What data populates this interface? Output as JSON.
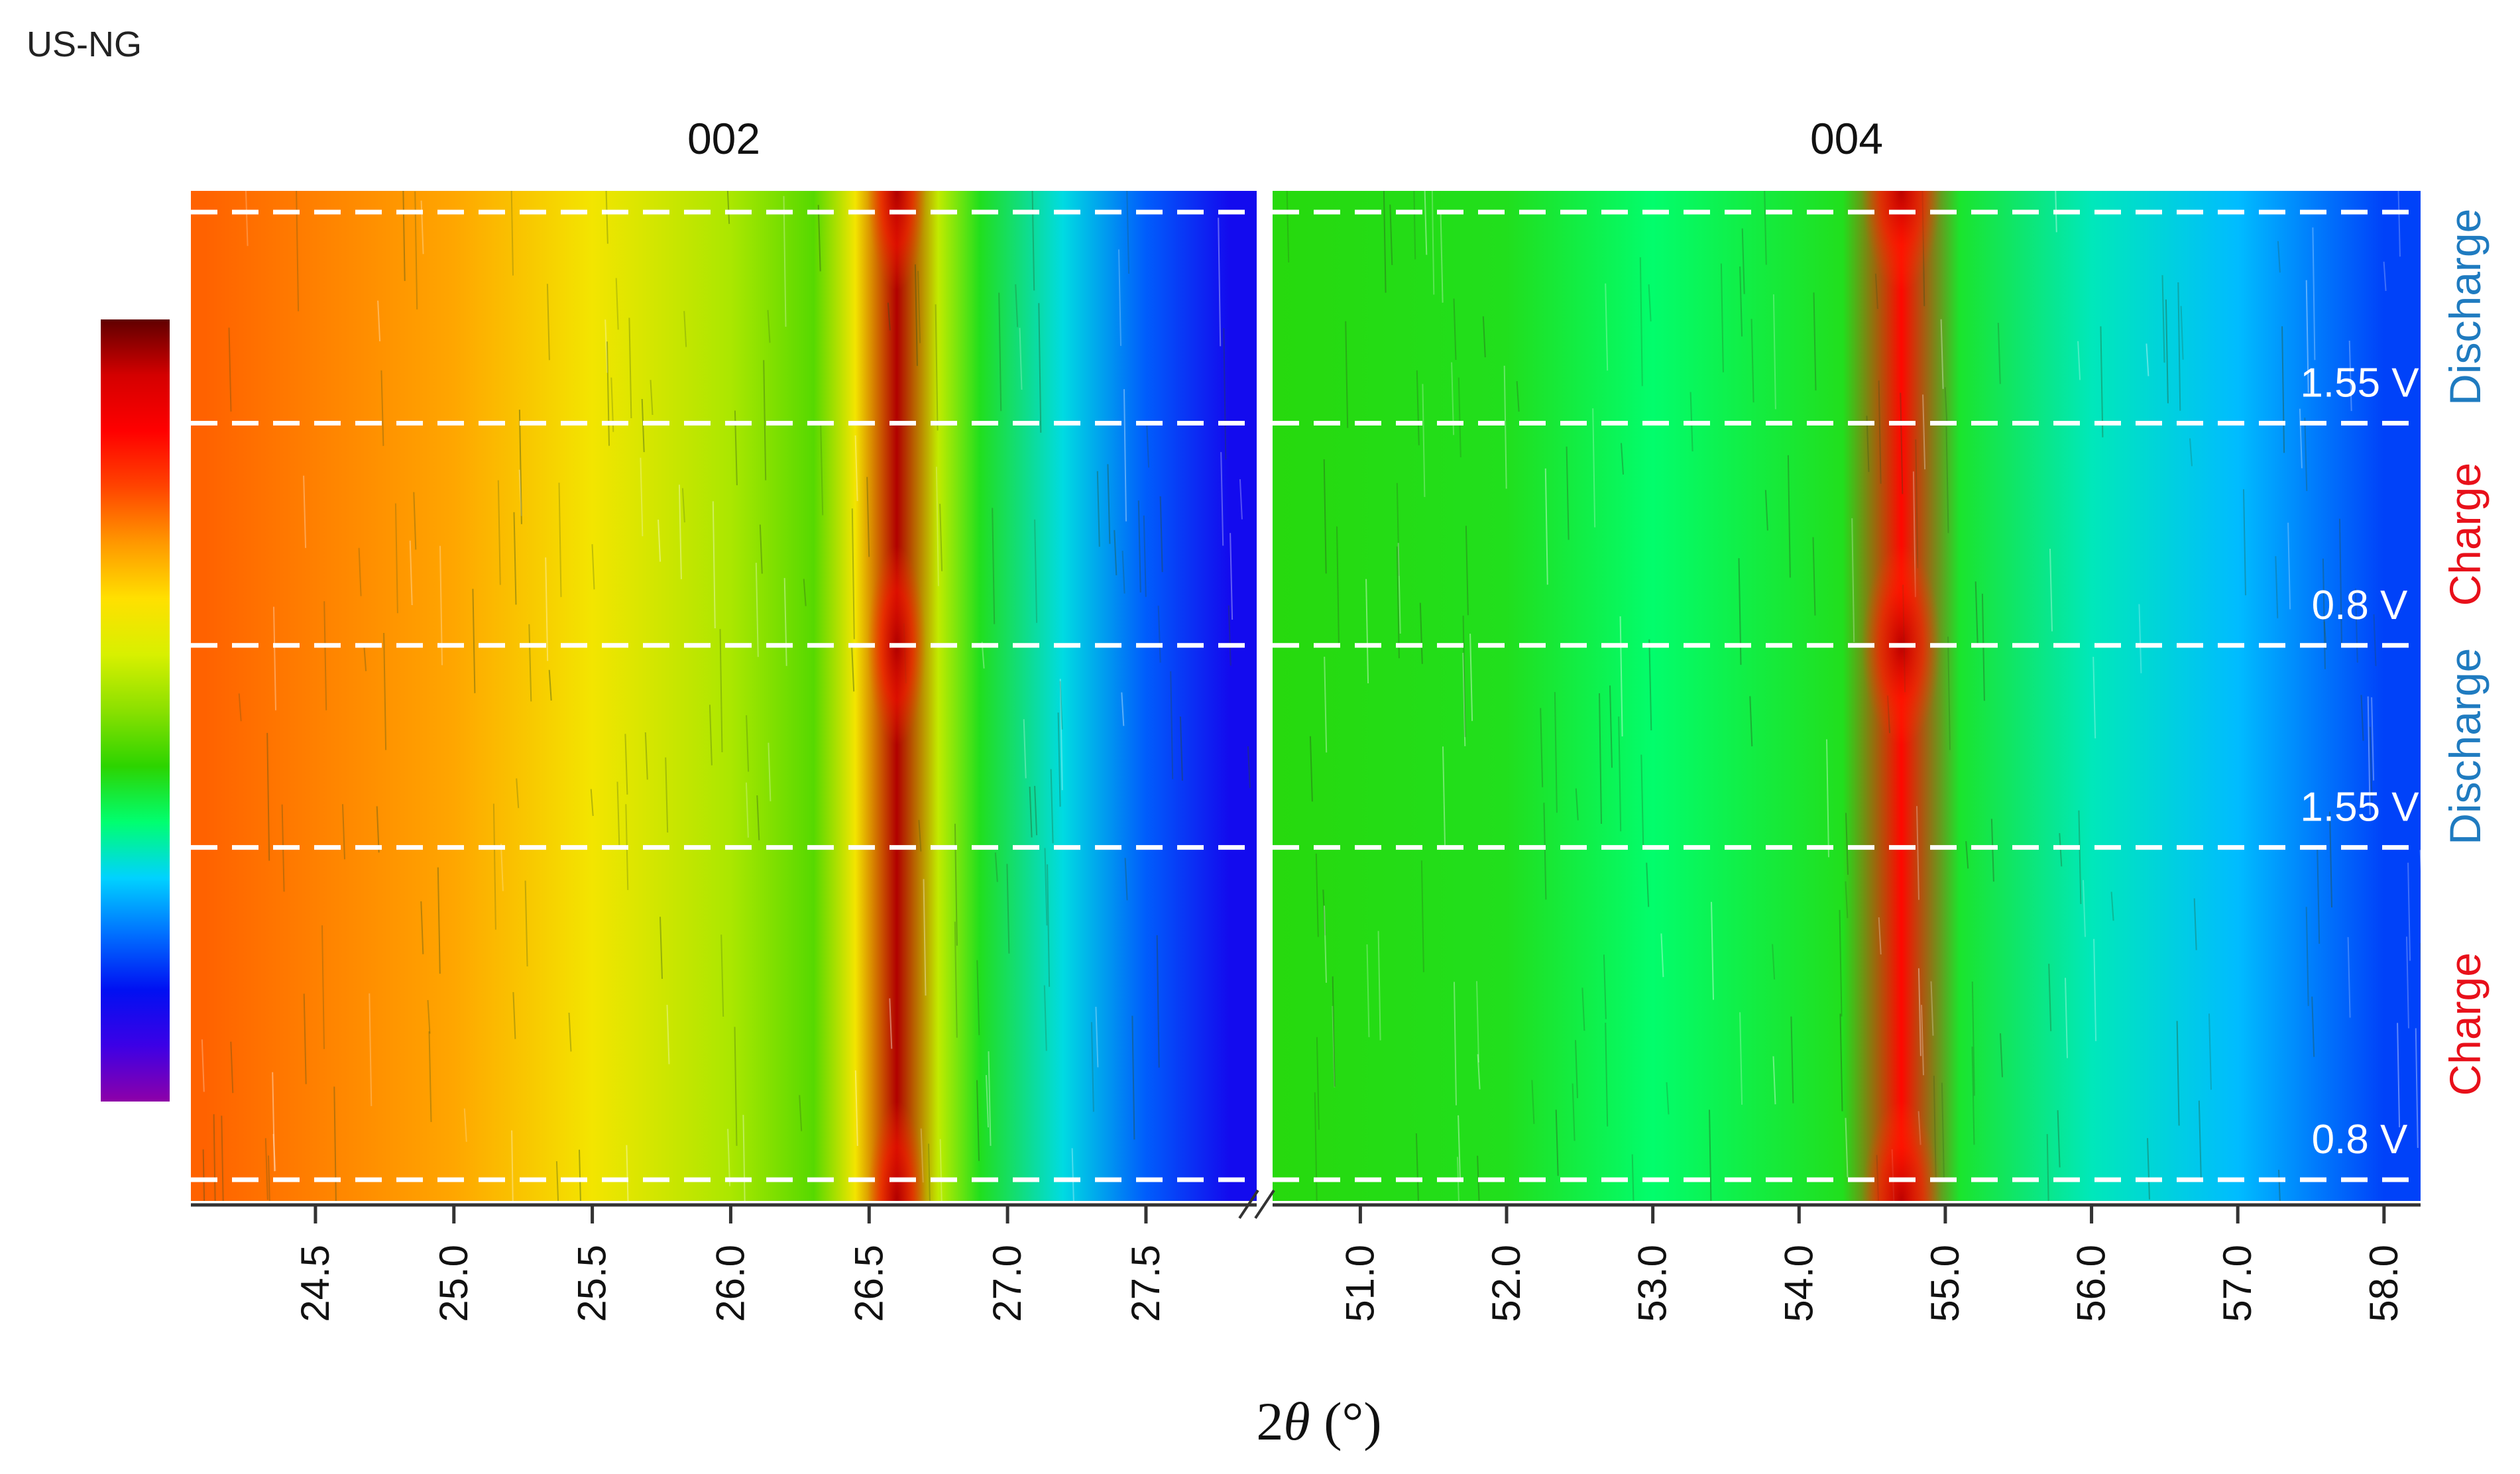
{
  "sample_label": "US-NG",
  "chart_data": {
    "type": "heatmap",
    "xlabel_prefix": "2",
    "xlabel_var": "θ",
    "xlabel_unit": " (°)",
    "axis_break": true,
    "grid": false,
    "colorbar": {
      "labels": [],
      "colors": [
        "#8e00a8",
        "#3c00e6",
        "#0010f2",
        "#0070ff",
        "#00d2ff",
        "#00ff70",
        "#2cd400",
        "#8be000",
        "#d8f000",
        "#ffe000",
        "#ff9800",
        "#ff4400",
        "#ff0000",
        "#d40000",
        "#600000"
      ]
    },
    "panels": [
      {
        "title": "002",
        "xlim": [
          24.05,
          27.9
        ],
        "xticks": [
          24.5,
          25.0,
          25.5,
          26.0,
          26.5,
          27.0,
          27.5
        ],
        "xtick_labels": [
          "24.5",
          "25.0",
          "25.5",
          "26.0",
          "26.5",
          "27.0",
          "27.5"
        ],
        "peak_center": 26.6,
        "intensity_profile": [
          {
            "x": 24.1,
            "level": 0.76
          },
          {
            "x": 25.0,
            "level": 0.7
          },
          {
            "x": 25.5,
            "level": 0.62
          },
          {
            "x": 26.0,
            "level": 0.53
          },
          {
            "x": 26.3,
            "level": 0.46
          },
          {
            "x": 26.45,
            "level": 0.62
          },
          {
            "x": 26.6,
            "level": 0.95
          },
          {
            "x": 26.75,
            "level": 0.55
          },
          {
            "x": 26.9,
            "level": 0.41
          },
          {
            "x": 27.2,
            "level": 0.3
          },
          {
            "x": 27.5,
            "level": 0.2
          },
          {
            "x": 27.8,
            "level": 0.12
          }
        ]
      },
      {
        "title": "004",
        "xlim": [
          50.4,
          58.25
        ],
        "xticks": [
          51.0,
          52.0,
          53.0,
          54.0,
          55.0,
          56.0,
          57.0,
          58.0
        ],
        "xtick_labels": [
          "51.0",
          "52.0",
          "53.0",
          "54.0",
          "55.0",
          "56.0",
          "57.0",
          "58.0"
        ],
        "peak_center": 54.7,
        "intensity_profile": [
          {
            "x": 50.4,
            "level": 0.42
          },
          {
            "x": 52.0,
            "level": 0.41
          },
          {
            "x": 53.0,
            "level": 0.36
          },
          {
            "x": 54.3,
            "level": 0.41
          },
          {
            "x": 54.7,
            "level": 0.85
          },
          {
            "x": 55.1,
            "level": 0.4
          },
          {
            "x": 56.0,
            "level": 0.32
          },
          {
            "x": 57.0,
            "level": 0.27
          },
          {
            "x": 58.0,
            "level": 0.18
          }
        ]
      }
    ],
    "segment_boundaries": [
      0.0,
      0.23,
      0.45,
      0.65,
      1.0
    ],
    "segments": [
      {
        "phase": "Discharge",
        "phase_color": "#1f7bc0",
        "end_label": "1.55 V"
      },
      {
        "phase": "Charge",
        "phase_color": "#e8101a",
        "end_label": "0.8 V"
      },
      {
        "phase": "Discharge",
        "phase_color": "#1f7bc0",
        "end_label": "1.55 V"
      },
      {
        "phase": "Charge",
        "phase_color": "#e8101a",
        "end_label": "0.8 V"
      }
    ]
  }
}
